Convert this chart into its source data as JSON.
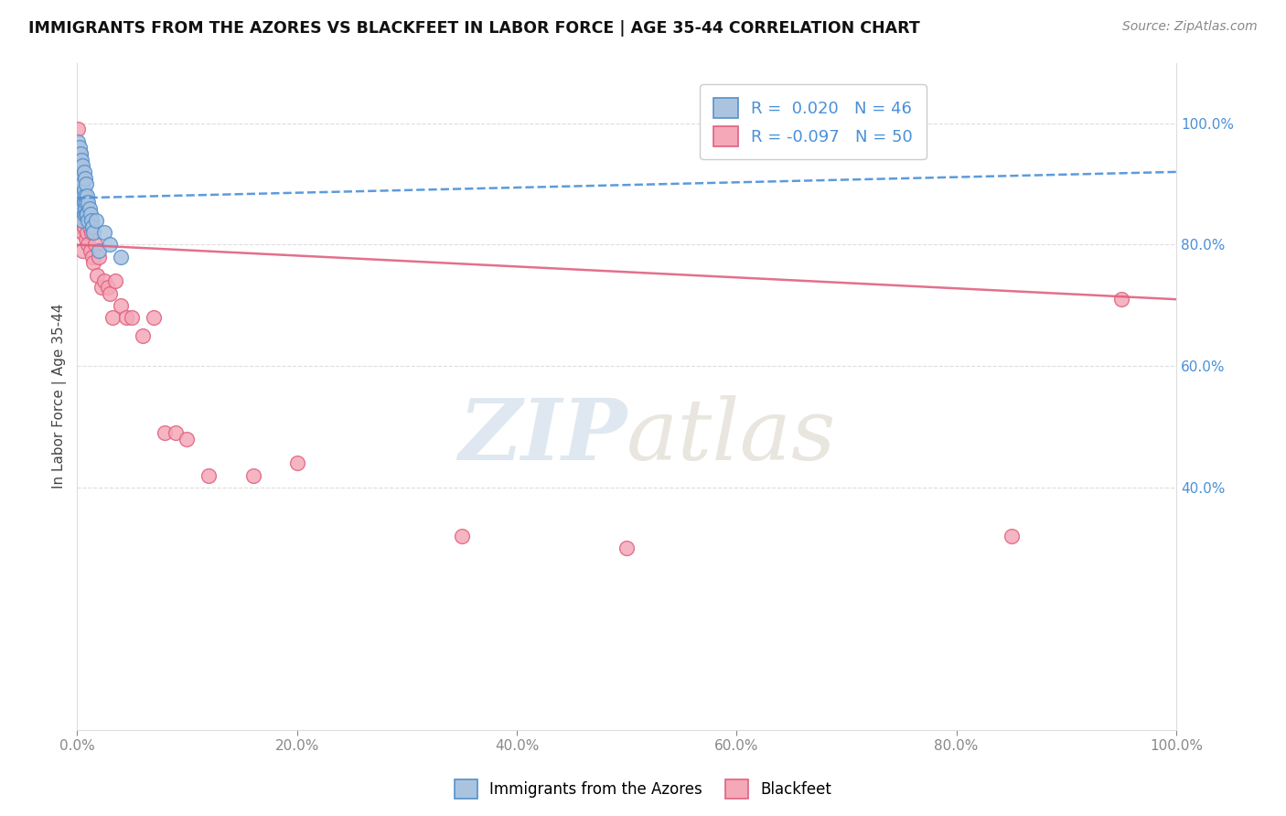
{
  "title": "IMMIGRANTS FROM THE AZORES VS BLACKFEET IN LABOR FORCE | AGE 35-44 CORRELATION CHART",
  "source": "Source: ZipAtlas.com",
  "ylabel": "In Labor Force | Age 35-44",
  "xlim": [
    0,
    1.0
  ],
  "ylim": [
    0,
    1.1
  ],
  "xticks": [
    0.0,
    0.2,
    0.4,
    0.6,
    0.8,
    1.0
  ],
  "xticklabels": [
    "0.0%",
    "20.0%",
    "40.0%",
    "60.0%",
    "80.0%",
    "100.0%"
  ],
  "yticks_right": [
    0.4,
    0.6,
    0.8,
    1.0
  ],
  "yticklabels_right": [
    "40.0%",
    "60.0%",
    "80.0%",
    "100.0%"
  ],
  "blue_R": 0.02,
  "blue_N": 46,
  "pink_R": -0.097,
  "pink_N": 50,
  "blue_color": "#aac4e0",
  "pink_color": "#f4a8b8",
  "blue_edge_color": "#5590cc",
  "pink_edge_color": "#e06080",
  "blue_line_color": "#4a90d9",
  "pink_line_color": "#e06080",
  "watermark_zip": "ZIP",
  "watermark_atlas": "atlas",
  "blue_x": [
    0.0,
    0.001,
    0.001,
    0.002,
    0.002,
    0.002,
    0.002,
    0.003,
    0.003,
    0.003,
    0.003,
    0.003,
    0.004,
    0.004,
    0.004,
    0.004,
    0.004,
    0.005,
    0.005,
    0.005,
    0.005,
    0.005,
    0.006,
    0.006,
    0.006,
    0.006,
    0.007,
    0.007,
    0.007,
    0.008,
    0.008,
    0.008,
    0.009,
    0.009,
    0.01,
    0.01,
    0.011,
    0.012,
    0.013,
    0.014,
    0.015,
    0.017,
    0.02,
    0.025,
    0.03,
    0.04
  ],
  "blue_y": [
    0.94,
    0.97,
    0.91,
    0.96,
    0.93,
    0.9,
    0.88,
    0.95,
    0.92,
    0.89,
    0.87,
    0.86,
    0.94,
    0.91,
    0.89,
    0.87,
    0.85,
    0.93,
    0.9,
    0.88,
    0.86,
    0.84,
    0.92,
    0.89,
    0.87,
    0.85,
    0.91,
    0.88,
    0.86,
    0.9,
    0.87,
    0.85,
    0.88,
    0.85,
    0.87,
    0.84,
    0.86,
    0.85,
    0.84,
    0.83,
    0.82,
    0.84,
    0.79,
    0.82,
    0.8,
    0.78
  ],
  "pink_x": [
    0.001,
    0.002,
    0.002,
    0.003,
    0.003,
    0.003,
    0.004,
    0.004,
    0.004,
    0.005,
    0.005,
    0.005,
    0.006,
    0.006,
    0.007,
    0.007,
    0.008,
    0.008,
    0.009,
    0.009,
    0.01,
    0.011,
    0.012,
    0.013,
    0.014,
    0.015,
    0.016,
    0.018,
    0.02,
    0.022,
    0.025,
    0.028,
    0.03,
    0.032,
    0.035,
    0.04,
    0.045,
    0.05,
    0.06,
    0.07,
    0.08,
    0.09,
    0.1,
    0.12,
    0.16,
    0.2,
    0.35,
    0.5,
    0.85,
    0.95
  ],
  "pink_y": [
    0.99,
    0.92,
    0.88,
    0.95,
    0.87,
    0.84,
    0.91,
    0.85,
    0.83,
    0.89,
    0.82,
    0.79,
    0.87,
    0.83,
    0.88,
    0.85,
    0.84,
    0.81,
    0.86,
    0.82,
    0.8,
    0.83,
    0.79,
    0.82,
    0.78,
    0.77,
    0.8,
    0.75,
    0.78,
    0.73,
    0.74,
    0.73,
    0.72,
    0.68,
    0.74,
    0.7,
    0.68,
    0.68,
    0.65,
    0.68,
    0.49,
    0.49,
    0.48,
    0.42,
    0.42,
    0.44,
    0.32,
    0.3,
    0.32,
    0.71
  ],
  "blue_trend_x": [
    0.0,
    1.0
  ],
  "blue_trend_y": [
    0.877,
    0.92
  ],
  "pink_trend_x": [
    0.0,
    1.0
  ],
  "pink_trend_y": [
    0.8,
    0.71
  ]
}
